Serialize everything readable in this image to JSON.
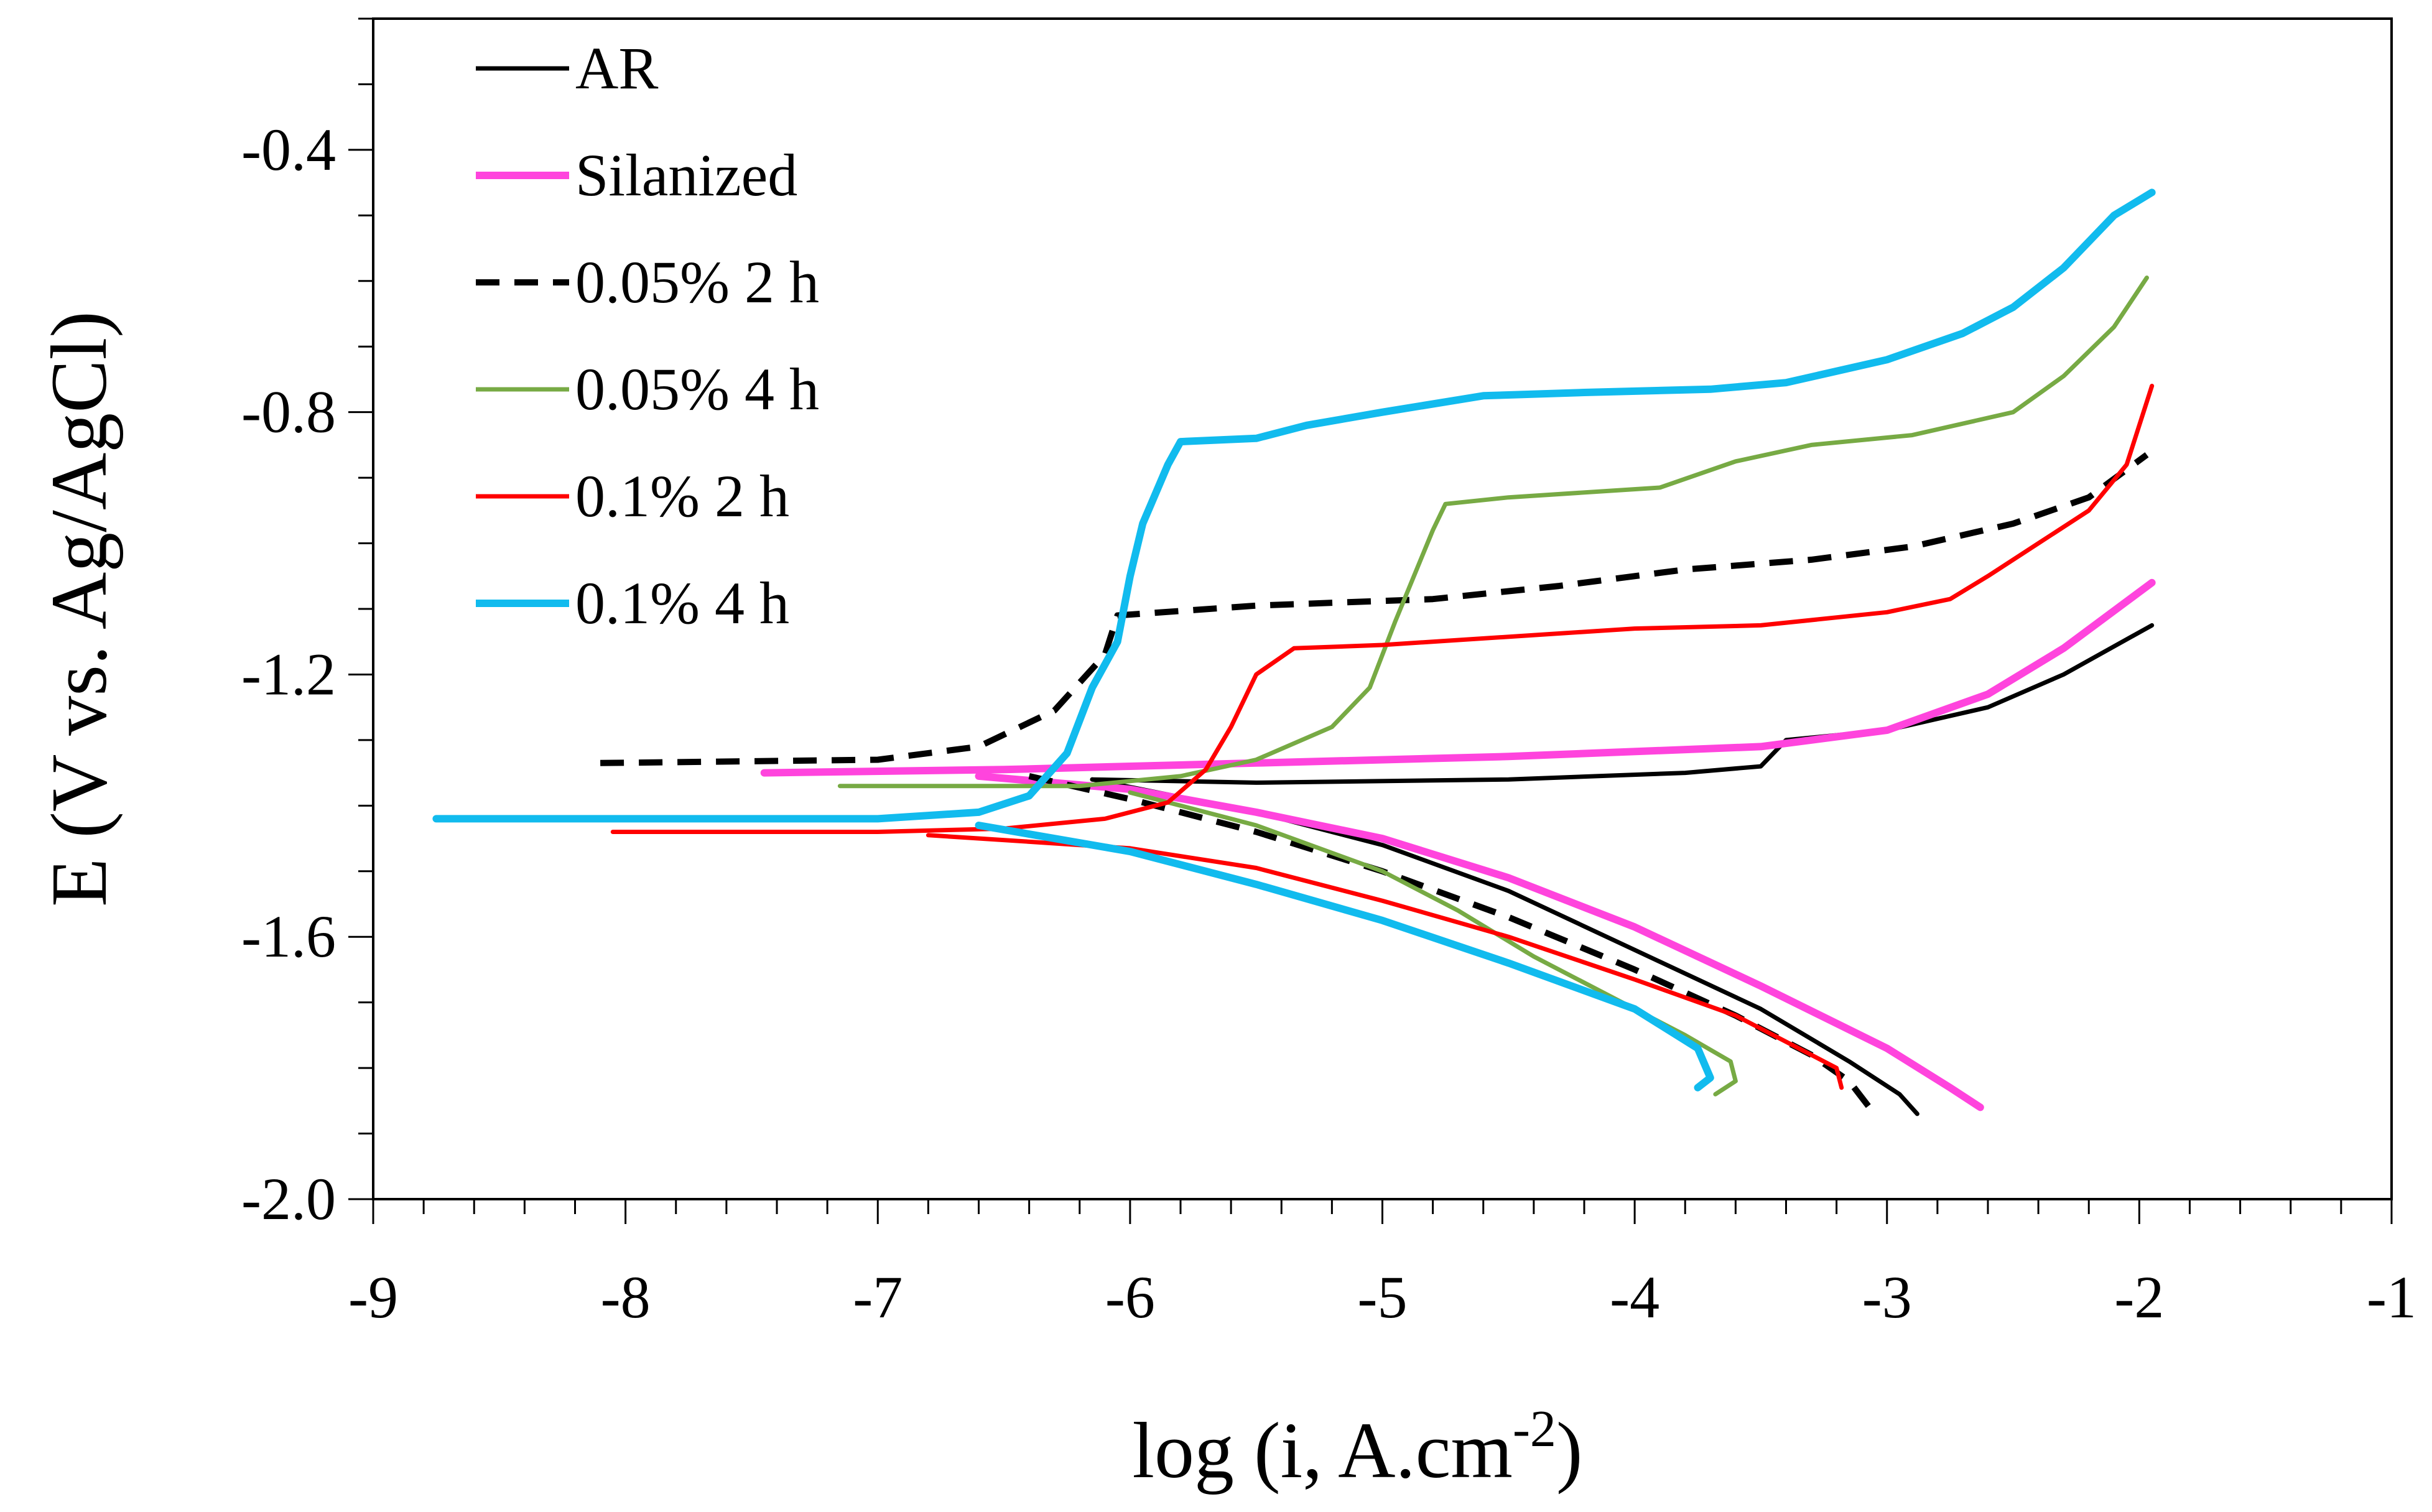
{
  "chart_data": {
    "type": "line",
    "title": "",
    "xlabel_main": "log (i, A.cm",
    "xlabel_sup": "-2",
    "xlabel_end": ")",
    "ylabel": "E (V vs. Ag/AgCl)",
    "xlim": [
      -9,
      -1
    ],
    "ylim": [
      -2.0,
      -0.2
    ],
    "xticks": [
      -9,
      -8,
      -7,
      -6,
      -5,
      -4,
      -3,
      -2,
      -1
    ],
    "xtick_labels": [
      "-9",
      "-8",
      "-7",
      "-6",
      "-5",
      "-4",
      "-3",
      "-2",
      "-1"
    ],
    "yticks": [
      -2.0,
      -1.6,
      -1.2,
      -0.8,
      -0.4
    ],
    "ytick_labels": [
      "-2.0",
      "-1.6",
      "-1.2",
      "-0.8",
      "-0.4"
    ],
    "legend_position": "top-left",
    "series": [
      {
        "name": "AR",
        "color": "#000000",
        "dash": "solid",
        "width": 7,
        "anodic": [
          [
            -6.15,
            -1.36
          ],
          [
            -5.5,
            -1.365
          ],
          [
            -4.5,
            -1.36
          ],
          [
            -3.8,
            -1.35
          ],
          [
            -3.5,
            -1.34
          ],
          [
            -3.4,
            -1.3
          ],
          [
            -3.0,
            -1.285
          ],
          [
            -2.6,
            -1.25
          ],
          [
            -2.3,
            -1.2
          ],
          [
            -1.95,
            -1.125
          ]
        ],
        "cathodic": [
          [
            -6.15,
            -1.36
          ],
          [
            -5.5,
            -1.41
          ],
          [
            -5.0,
            -1.46
          ],
          [
            -4.5,
            -1.53
          ],
          [
            -4.0,
            -1.62
          ],
          [
            -3.5,
            -1.71
          ],
          [
            -3.15,
            -1.79
          ],
          [
            -2.95,
            -1.84
          ],
          [
            -2.88,
            -1.87
          ]
        ]
      },
      {
        "name": "Silanized",
        "color": "#ff44dd",
        "dash": "solid",
        "width": 12,
        "anodic": [
          [
            -7.45,
            -1.35
          ],
          [
            -6.5,
            -1.345
          ],
          [
            -5.5,
            -1.335
          ],
          [
            -4.5,
            -1.325
          ],
          [
            -3.5,
            -1.31
          ],
          [
            -3.0,
            -1.285
          ],
          [
            -2.6,
            -1.23
          ],
          [
            -2.3,
            -1.16
          ],
          [
            -1.95,
            -1.06
          ]
        ],
        "cathodic": [
          [
            -6.6,
            -1.355
          ],
          [
            -6.0,
            -1.375
          ],
          [
            -5.5,
            -1.41
          ],
          [
            -5.0,
            -1.45
          ],
          [
            -4.5,
            -1.51
          ],
          [
            -4.0,
            -1.585
          ],
          [
            -3.5,
            -1.675
          ],
          [
            -3.0,
            -1.77
          ],
          [
            -2.75,
            -1.83
          ],
          [
            -2.63,
            -1.86
          ]
        ]
      },
      {
        "name": "0.05% 2 h",
        "color": "#000000",
        "dash": "dashed",
        "width": 10,
        "anodic": [
          [
            -8.1,
            -1.335
          ],
          [
            -7.0,
            -1.33
          ],
          [
            -6.6,
            -1.31
          ],
          [
            -6.3,
            -1.255
          ],
          [
            -6.1,
            -1.17
          ],
          [
            -6.05,
            -1.11
          ],
          [
            -5.5,
            -1.095
          ],
          [
            -4.8,
            -1.085
          ],
          [
            -4.3,
            -1.065
          ],
          [
            -3.8,
            -1.04
          ],
          [
            -3.3,
            -1.025
          ],
          [
            -2.9,
            -1.005
          ],
          [
            -2.5,
            -0.97
          ],
          [
            -2.2,
            -0.93
          ],
          [
            -1.97,
            -0.865
          ]
        ],
        "cathodic": [
          [
            -6.4,
            -1.355
          ],
          [
            -6.0,
            -1.39
          ],
          [
            -5.5,
            -1.44
          ],
          [
            -5.0,
            -1.5
          ],
          [
            -4.5,
            -1.57
          ],
          [
            -4.0,
            -1.65
          ],
          [
            -3.6,
            -1.72
          ],
          [
            -3.3,
            -1.78
          ],
          [
            -3.15,
            -1.82
          ],
          [
            -3.05,
            -1.87
          ]
        ]
      },
      {
        "name": "0.05% 4 h",
        "color": "#77aa44",
        "dash": "solid",
        "width": 7,
        "anodic": [
          [
            -7.15,
            -1.37
          ],
          [
            -6.2,
            -1.37
          ],
          [
            -5.8,
            -1.355
          ],
          [
            -5.5,
            -1.33
          ],
          [
            -5.2,
            -1.28
          ],
          [
            -5.05,
            -1.22
          ],
          [
            -4.95,
            -1.12
          ],
          [
            -4.8,
            -0.98
          ],
          [
            -4.75,
            -0.94
          ],
          [
            -4.5,
            -0.93
          ],
          [
            -3.9,
            -0.915
          ],
          [
            -3.6,
            -0.875
          ],
          [
            -3.3,
            -0.85
          ],
          [
            -2.9,
            -0.835
          ],
          [
            -2.5,
            -0.8
          ],
          [
            -2.3,
            -0.745
          ],
          [
            -2.1,
            -0.67
          ],
          [
            -1.97,
            -0.595
          ]
        ],
        "cathodic": [
          [
            -6.0,
            -1.38
          ],
          [
            -5.5,
            -1.43
          ],
          [
            -5.0,
            -1.5
          ],
          [
            -4.7,
            -1.56
          ],
          [
            -4.4,
            -1.63
          ],
          [
            -4.1,
            -1.69
          ],
          [
            -3.8,
            -1.75
          ],
          [
            -3.62,
            -1.79
          ],
          [
            -3.6,
            -1.82
          ],
          [
            -3.68,
            -1.84
          ]
        ]
      },
      {
        "name": "0.1% 2 h",
        "color": "#ff0000",
        "dash": "solid",
        "width": 7,
        "anodic": [
          [
            -8.05,
            -1.44
          ],
          [
            -7.0,
            -1.44
          ],
          [
            -6.5,
            -1.435
          ],
          [
            -6.1,
            -1.42
          ],
          [
            -5.85,
            -1.395
          ],
          [
            -5.7,
            -1.345
          ],
          [
            -5.6,
            -1.28
          ],
          [
            -5.5,
            -1.2
          ],
          [
            -5.35,
            -1.16
          ],
          [
            -5.0,
            -1.155
          ],
          [
            -4.0,
            -1.13
          ],
          [
            -3.5,
            -1.125
          ],
          [
            -3.0,
            -1.105
          ],
          [
            -2.75,
            -1.085
          ],
          [
            -2.6,
            -1.05
          ],
          [
            -2.4,
            -1.0
          ],
          [
            -2.2,
            -0.95
          ],
          [
            -2.05,
            -0.88
          ],
          [
            -1.95,
            -0.76
          ]
        ],
        "cathodic": [
          [
            -6.8,
            -1.445
          ],
          [
            -6.0,
            -1.465
          ],
          [
            -5.5,
            -1.495
          ],
          [
            -5.0,
            -1.545
          ],
          [
            -4.5,
            -1.6
          ],
          [
            -4.0,
            -1.665
          ],
          [
            -3.6,
            -1.72
          ],
          [
            -3.35,
            -1.77
          ],
          [
            -3.2,
            -1.8
          ],
          [
            -3.18,
            -1.83
          ]
        ]
      },
      {
        "name": "0.1% 4 h",
        "color": "#11bbee",
        "dash": "solid",
        "width": 12,
        "anodic": [
          [
            -8.75,
            -1.42
          ],
          [
            -7.0,
            -1.42
          ],
          [
            -6.6,
            -1.41
          ],
          [
            -6.4,
            -1.385
          ],
          [
            -6.25,
            -1.32
          ],
          [
            -6.15,
            -1.22
          ],
          [
            -6.05,
            -1.15
          ],
          [
            -6.0,
            -1.05
          ],
          [
            -5.95,
            -0.97
          ],
          [
            -5.85,
            -0.88
          ],
          [
            -5.8,
            -0.845
          ],
          [
            -5.5,
            -0.84
          ],
          [
            -5.3,
            -0.82
          ],
          [
            -5.0,
            -0.8
          ],
          [
            -4.6,
            -0.775
          ],
          [
            -4.2,
            -0.77
          ],
          [
            -3.7,
            -0.765
          ],
          [
            -3.4,
            -0.755
          ],
          [
            -3.0,
            -0.72
          ],
          [
            -2.7,
            -0.68
          ],
          [
            -2.5,
            -0.64
          ],
          [
            -2.3,
            -0.58
          ],
          [
            -2.1,
            -0.5
          ],
          [
            -1.95,
            -0.465
          ]
        ],
        "cathodic": [
          [
            -6.6,
            -1.43
          ],
          [
            -6.0,
            -1.47
          ],
          [
            -5.5,
            -1.52
          ],
          [
            -5.0,
            -1.575
          ],
          [
            -4.5,
            -1.64
          ],
          [
            -4.0,
            -1.71
          ],
          [
            -3.75,
            -1.77
          ],
          [
            -3.7,
            -1.815
          ],
          [
            -3.75,
            -1.83
          ]
        ]
      }
    ]
  }
}
